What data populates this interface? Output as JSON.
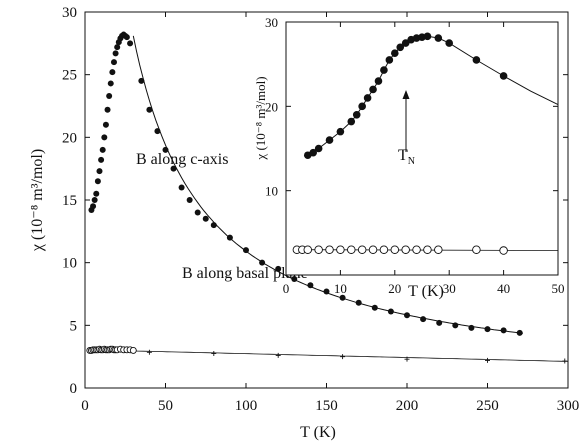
{
  "chart_data": [
    {
      "type": "scatter",
      "xlabel": "T (K)",
      "ylabel": "χ  (10⁻⁸ m³/mol)",
      "xlim": [
        0,
        300
      ],
      "ylim": [
        0,
        30
      ],
      "x_ticks": [
        "0",
        "50",
        "100",
        "150",
        "200",
        "250",
        "300"
      ],
      "y_ticks": [
        "0",
        "5",
        "10",
        "15",
        "20",
        "25",
        "30"
      ],
      "grid": false,
      "annotations": [
        "B along c-axis",
        "B along basal plane"
      ],
      "series": [
        {
          "marker": "filled-circle",
          "x": [
            4,
            5,
            6,
            7,
            8,
            9,
            10,
            11,
            12,
            13,
            14,
            15,
            16,
            17,
            18,
            19,
            20,
            21,
            22,
            23,
            24,
            25,
            26,
            28,
            35,
            40,
            45,
            50,
            55,
            60,
            65,
            70,
            75,
            80,
            90,
            100,
            110,
            120,
            130,
            140,
            150,
            160,
            170,
            180,
            190,
            200,
            210,
            220,
            230,
            240,
            250,
            260,
            270
          ],
          "y": [
            14.2,
            14.5,
            15.0,
            15.5,
            16.5,
            17.3,
            18.2,
            19.0,
            20.0,
            21.0,
            22.2,
            23.3,
            24.3,
            25.2,
            26.0,
            26.7,
            27.2,
            27.6,
            27.9,
            28.1,
            28.2,
            28.1,
            28.0,
            27.5,
            24.5,
            22.2,
            20.5,
            19.0,
            17.5,
            16.0,
            15.0,
            14.0,
            13.5,
            13.0,
            12.0,
            11.0,
            10.0,
            9.5,
            8.7,
            8.2,
            7.7,
            7.2,
            6.8,
            6.4,
            6.1,
            5.8,
            5.5,
            5.2,
            5.0,
            4.8,
            4.7,
            4.6,
            4.4
          ]
        },
        {
          "marker": "open-circle",
          "x": [
            3,
            4,
            5,
            6,
            7,
            8,
            9,
            10,
            11,
            12,
            13,
            14,
            15,
            16,
            17,
            18,
            19,
            20,
            22,
            24,
            26,
            28,
            30
          ],
          "y": [
            3.0,
            3.0,
            3.05,
            3.05,
            3.05,
            3.05,
            3.1,
            3.05,
            3.05,
            3.1,
            3.05,
            3.05,
            3.05,
            3.1,
            3.1,
            3.05,
            3.05,
            3.05,
            3.1,
            3.05,
            3.05,
            3.05,
            3.0
          ]
        },
        {
          "marker": "cross",
          "x": [
            40,
            80,
            120,
            160,
            200,
            250,
            298
          ],
          "y": [
            2.85,
            2.75,
            2.6,
            2.5,
            2.3,
            2.2,
            2.15
          ]
        }
      ]
    },
    {
      "type": "scatter",
      "xlabel": "T (K)",
      "ylabel": "χ  (10⁻⁸ m³/mol)",
      "xlim": [
        0,
        50
      ],
      "ylim": [
        0,
        30
      ],
      "x_ticks": [
        "0",
        "10",
        "20",
        "30",
        "40",
        "50"
      ],
      "y_ticks": [
        "10",
        "20",
        "30"
      ],
      "grid": false,
      "annotations": [
        "T",
        "N"
      ],
      "series": [
        {
          "marker": "filled-circle",
          "x": [
            4,
            5,
            6,
            8,
            10,
            12,
            13,
            14,
            15,
            16,
            17,
            18,
            19,
            20,
            21,
            22,
            23,
            24,
            25,
            26,
            28,
            30,
            35,
            40
          ],
          "y": [
            14.2,
            14.5,
            15.0,
            16.0,
            17.0,
            18.2,
            19.0,
            20.0,
            21.0,
            22.0,
            23.0,
            24.3,
            25.5,
            26.3,
            27.0,
            27.5,
            27.9,
            28.1,
            28.2,
            28.3,
            28.1,
            27.5,
            25.5,
            23.6
          ]
        },
        {
          "marker": "open-circle",
          "x": [
            2,
            3,
            4,
            6,
            8,
            10,
            12,
            14,
            16,
            18,
            20,
            22,
            24,
            26,
            28,
            35,
            40
          ],
          "y": [
            3.0,
            3.0,
            3.0,
            3.0,
            3.0,
            3.0,
            3.0,
            3.0,
            3.0,
            3.0,
            3.0,
            3.0,
            3.0,
            3.0,
            3.0,
            3.0,
            2.9
          ]
        }
      ]
    }
  ]
}
